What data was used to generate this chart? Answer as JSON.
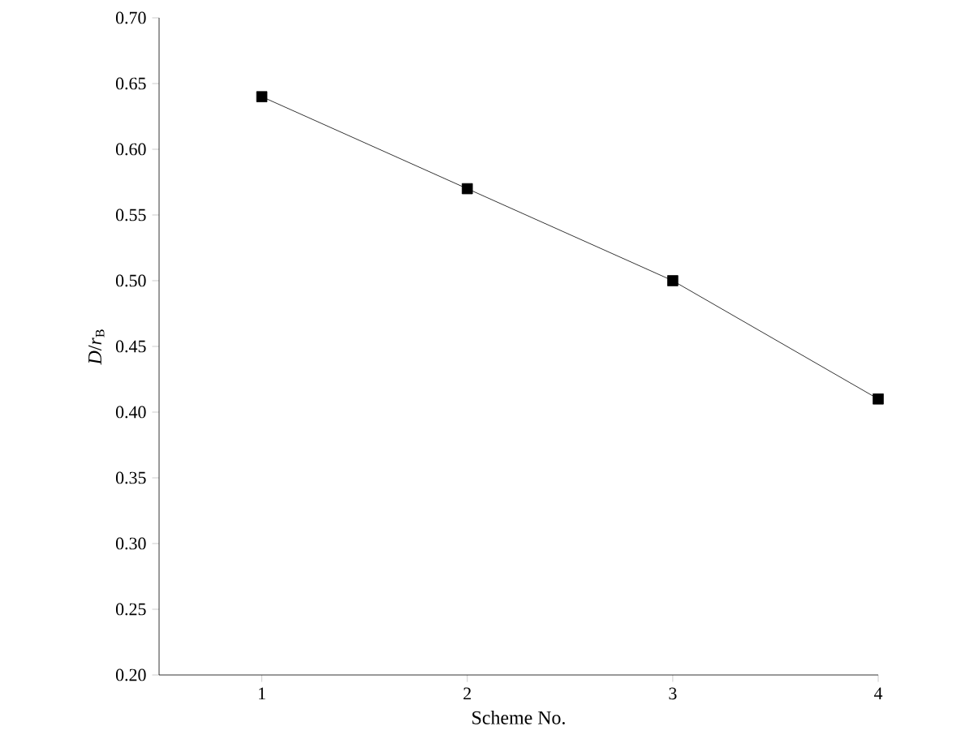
{
  "chart_data": {
    "type": "line",
    "xlabel": "Scheme No.",
    "ylabel": "*D*/*r*$_{B}$",
    "x": [
      1,
      2,
      3,
      4
    ],
    "values": [
      0.64,
      0.57,
      0.5,
      0.41
    ],
    "color": "#000000",
    "xlim": [
      0.5,
      4.0
    ],
    "xticks": [
      1,
      2,
      3,
      4
    ],
    "ylim": [
      0.2,
      0.7
    ],
    "yticks": [
      {
        "value": 0.2,
        "label": "0.20"
      },
      0.25,
      {
        "value": 0.3,
        "label": "0.30"
      },
      0.35,
      {
        "value": 0.4,
        "label": "0.40"
      },
      0.45,
      {
        "value": 0.5,
        "label": "0.50"
      },
      0.55,
      {
        "value": 0.6,
        "label": "0.60"
      },
      0.65,
      {
        "value": 0.7,
        "label": "0.70"
      }
    ],
    "marker": "square",
    "line_style": "solid"
  }
}
